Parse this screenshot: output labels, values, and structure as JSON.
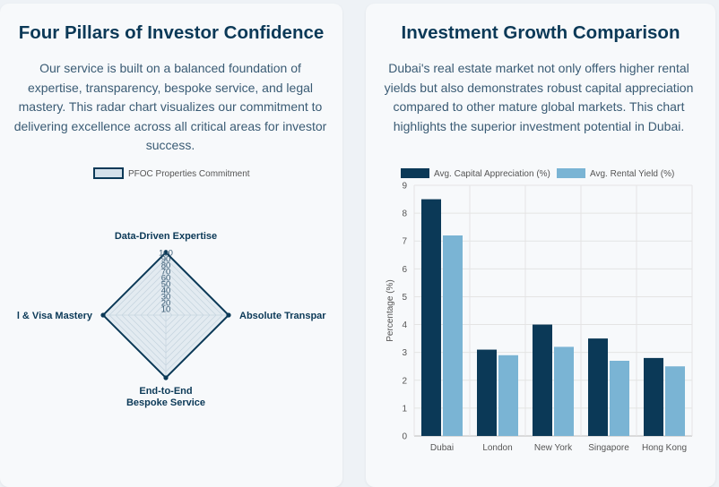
{
  "radar_card": {
    "title": "Four Pillars of Investor Confidence",
    "description": "Our service is built on a balanced foundation of expertise, transparency, bespoke service, and legal mastery. This radar chart visualizes our commitment to delivering excellence across all critical areas for investor success."
  },
  "growth_card": {
    "title": "Investment Growth Comparison",
    "description": "Dubai's real estate market not only offers higher rental yields but also demonstrates robust capital appreciation compared to other mature global markets. This chart highlights the superior investment potential in Dubai."
  },
  "chart_data": [
    {
      "type": "radar",
      "legend": [
        "PFOC Properties Commitment"
      ],
      "axes": [
        "Data-Driven Expertise",
        "Absolute Transpar",
        "End-to-End Bespoke Service",
        "l & Visa Mastery"
      ],
      "axis_label_lines": [
        [
          "Data-Driven Expertise"
        ],
        [
          "Absolute Transpar"
        ],
        [
          "End-to-End",
          "Bespoke Service"
        ],
        [
          "l & Visa Mastery"
        ]
      ],
      "series": [
        {
          "name": "PFOC Properties Commitment",
          "values": [
            100,
            100,
            100,
            100
          ]
        }
      ],
      "r_ticks": [
        "10",
        "20",
        "30",
        "40",
        "50",
        "60",
        "70",
        "80",
        "90",
        "100"
      ],
      "rlim": [
        0,
        100
      ],
      "colors": {
        "stroke": "#0b3957",
        "fill": "#d3e0ea",
        "grid": "#b9c8d4"
      }
    },
    {
      "type": "bar",
      "title": "",
      "categories": [
        "Dubai",
        "London",
        "New York",
        "Singapore",
        "Hong Kong"
      ],
      "series": [
        {
          "name": "Avg. Capital Appreciation (%)",
          "values": [
            8.5,
            3.1,
            4.0,
            3.5,
            2.8
          ],
          "color": "#0b3957"
        },
        {
          "name": "Avg. Rental Yield (%)",
          "values": [
            7.2,
            2.9,
            3.2,
            2.7,
            2.5
          ],
          "color": "#7ab4d4"
        }
      ],
      "ylabel": "Percentage (%)",
      "xlabel": "",
      "ylim": [
        0,
        9
      ],
      "y_ticks": [
        "0",
        "1",
        "2",
        "3",
        "4",
        "5",
        "6",
        "7",
        "8",
        "9"
      ],
      "grid": true,
      "legend_position": "top"
    }
  ]
}
